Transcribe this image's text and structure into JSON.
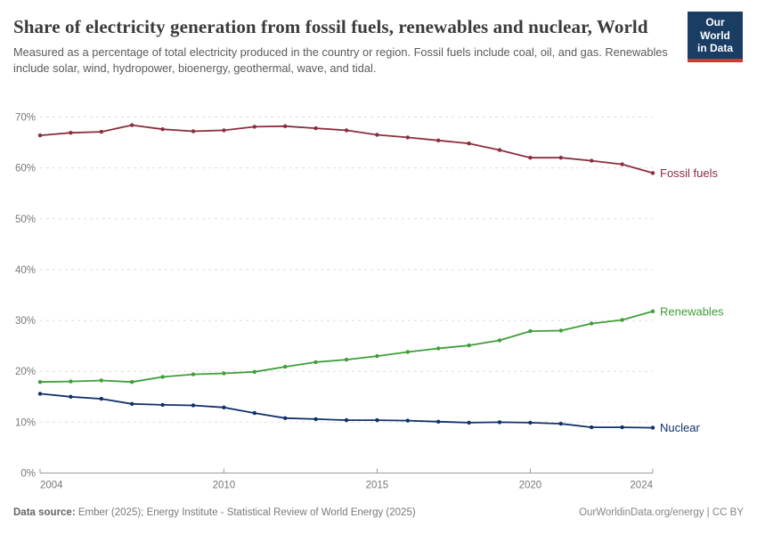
{
  "header": {
    "title": "Share of electricity generation from fossil fuels, renewables and nuclear, World",
    "subtitle": "Measured as a percentage of total electricity produced in the country or region. Fossil fuels include coal, oil, and gas. Renewables include solar, wind, hydropower, bioenergy, geothermal, wave, and tidal.",
    "logo": {
      "line1": "Our World",
      "line2": "in Data",
      "bg_color": "#1a3d63",
      "accent_color": "#ce3b32"
    }
  },
  "chart_data": {
    "type": "line",
    "x": [
      2004,
      2005,
      2006,
      2007,
      2008,
      2009,
      2010,
      2011,
      2012,
      2013,
      2014,
      2015,
      2016,
      2017,
      2018,
      2019,
      2020,
      2021,
      2022,
      2023,
      2024
    ],
    "series": [
      {
        "name": "Fossil fuels",
        "color": "#8c2d3c",
        "values": [
          66.4,
          66.9,
          67.1,
          68.4,
          67.6,
          67.2,
          67.4,
          68.1,
          68.2,
          67.8,
          67.4,
          66.5,
          66.0,
          65.4,
          64.8,
          63.5,
          62.0,
          62.0,
          61.4,
          60.7,
          59.0
        ]
      },
      {
        "name": "Renewables",
        "color": "#3e9e38",
        "values": [
          17.9,
          18.0,
          18.2,
          17.9,
          18.9,
          19.4,
          19.6,
          19.9,
          20.9,
          21.8,
          22.3,
          23.0,
          23.8,
          24.5,
          25.1,
          26.1,
          27.9,
          28.0,
          29.4,
          30.1,
          31.8
        ]
      },
      {
        "name": "Nuclear",
        "color": "#11316b",
        "values": [
          15.6,
          15.0,
          14.6,
          13.6,
          13.4,
          13.3,
          12.9,
          11.8,
          10.8,
          10.6,
          10.4,
          10.4,
          10.3,
          10.1,
          9.9,
          10.0,
          9.9,
          9.7,
          9.0,
          9.0,
          8.9
        ]
      }
    ],
    "title": "Share of electricity generation from fossil fuels, renewables and nuclear, World",
    "xlabel": "",
    "ylabel": "",
    "ylim": [
      0,
      70
    ],
    "yticks": [
      0,
      10,
      20,
      30,
      40,
      50,
      60,
      70
    ],
    "ytick_suffix": "%",
    "xticks": [
      2004,
      2010,
      2015,
      2020,
      2024
    ],
    "grid": "horizontal-dashed",
    "legend": "end-of-line-labels",
    "grid_color": "#dedede",
    "axis_color": "#9b9b9b"
  },
  "footer": {
    "source_label": "Data source:",
    "source_text": " Ember (2025); Energy Institute - Statistical Review of World Energy (2025)",
    "credit": "OurWorldinData.org/energy | CC BY"
  }
}
